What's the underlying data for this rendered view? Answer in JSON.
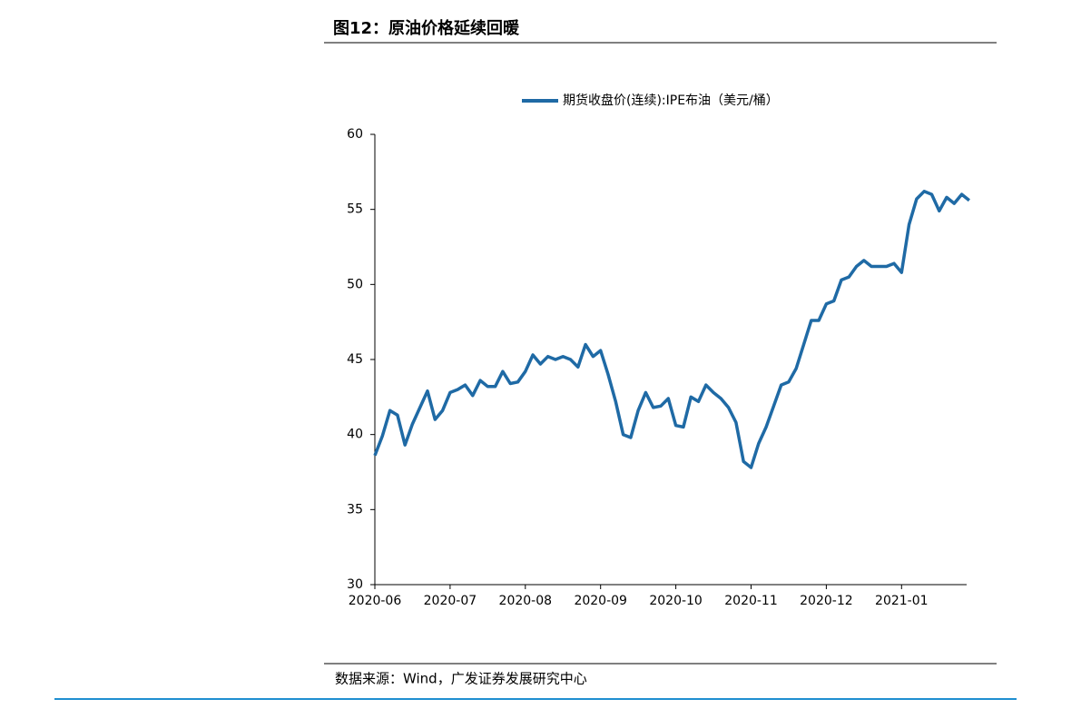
{
  "chart_data": {
    "type": "line",
    "title": "图12：原油价格延续回暖",
    "source": "数据来源：Wind，广发证券发展研究中心",
    "categories": [
      "2020-06",
      null,
      null,
      null,
      null,
      null,
      null,
      null,
      null,
      null,
      "2020-07",
      null,
      null,
      null,
      null,
      null,
      null,
      null,
      null,
      null,
      "2020-08",
      null,
      null,
      null,
      null,
      null,
      null,
      null,
      null,
      null,
      "2020-09",
      null,
      null,
      null,
      null,
      null,
      null,
      null,
      null,
      null,
      "2020-10",
      null,
      null,
      null,
      null,
      null,
      null,
      null,
      null,
      null,
      "2020-11",
      null,
      null,
      null,
      null,
      null,
      null,
      null,
      null,
      null,
      "2020-12",
      null,
      null,
      null,
      null,
      null,
      null,
      null,
      null,
      null,
      "2021-01",
      null,
      null,
      null,
      null,
      null,
      null,
      null,
      null,
      null
    ],
    "series": [
      {
        "name": "期货收盘价(连续):IPE布油（美元/桶）",
        "color": "#1f6aa5",
        "values": [
          38.6,
          39.9,
          41.6,
          41.3,
          39.3,
          40.7,
          41.8,
          42.9,
          41.0,
          41.6,
          42.8,
          43.0,
          43.3,
          42.6,
          43.6,
          43.2,
          43.2,
          44.2,
          43.4,
          43.5,
          44.2,
          45.3,
          44.7,
          45.2,
          45.0,
          45.2,
          45.0,
          44.5,
          46.0,
          45.2,
          45.6,
          44.0,
          42.2,
          40.0,
          39.8,
          41.6,
          42.8,
          41.8,
          41.9,
          42.4,
          40.6,
          40.5,
          42.5,
          42.2,
          43.3,
          42.8,
          42.4,
          41.8,
          40.8,
          38.2,
          37.8,
          39.4,
          40.5,
          41.9,
          43.3,
          43.5,
          44.4,
          46.0,
          47.6,
          47.6,
          48.7,
          48.9,
          50.3,
          50.5,
          51.2,
          51.6,
          51.2,
          51.2,
          51.2,
          51.4,
          50.8,
          54.0,
          55.7,
          56.2,
          56.0,
          54.9,
          55.8,
          55.4,
          56.0,
          55.6
        ]
      }
    ],
    "ylim": [
      30,
      60
    ],
    "yticks": [
      30,
      35,
      40,
      45,
      50,
      55,
      60
    ]
  }
}
